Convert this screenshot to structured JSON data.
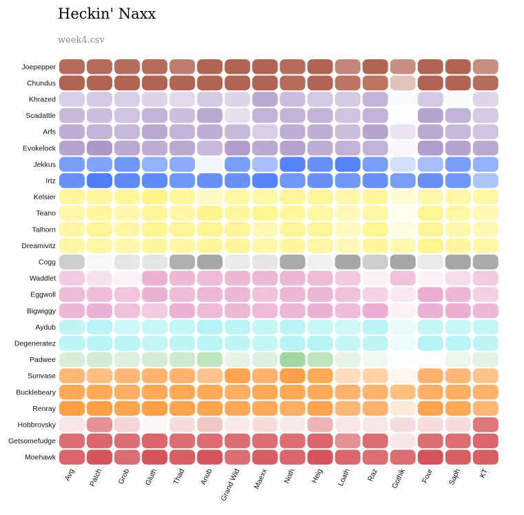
{
  "title": "Heckin' Naxx",
  "subtitle": "week4.csv",
  "chart_data": {
    "type": "heatmap",
    "title": "Heckin' Naxx",
    "subtitle": "week4.csv",
    "columns": [
      "Avg",
      "Patch",
      "Grob",
      "Gluth",
      "Thad",
      "Anub",
      "Grand Wid",
      "Maexx",
      "Noth",
      "Heig",
      "Loath",
      "Raz",
      "Gothik",
      "Four",
      "Saph",
      "KT"
    ],
    "rows": [
      {
        "name": "Joepepper",
        "hue": "#a9533f",
        "levels": [
          0.85,
          0.85,
          0.85,
          0.85,
          0.75,
          0.9,
          0.9,
          0.9,
          0.85,
          0.9,
          0.7,
          0.9,
          0.65,
          0.9,
          0.9,
          0.65
        ]
      },
      {
        "name": "Chundus",
        "hue": "#a9533f",
        "levels": [
          0.9,
          0.9,
          0.9,
          0.9,
          0.9,
          0.9,
          0.9,
          0.9,
          0.85,
          0.9,
          0.8,
          0.8,
          0.35,
          0.9,
          0.9,
          0.85
        ]
      },
      {
        "name": "Khrazed",
        "hue": "#a993c6",
        "levels": [
          0.45,
          0.5,
          0.45,
          0.4,
          0.35,
          0.5,
          0.4,
          0.8,
          0.6,
          0.5,
          0.5,
          0.7,
          0.05,
          0.5,
          0.05,
          0.4
        ]
      },
      {
        "name": "Scadattle",
        "hue": "#a993c6",
        "levels": [
          0.65,
          0.6,
          0.55,
          0.7,
          0.6,
          0.8,
          0.3,
          0.7,
          0.7,
          0.7,
          0.55,
          0.7,
          0.03,
          0.85,
          0.7,
          0.5
        ]
      },
      {
        "name": "Arfs",
        "hue": "#a993c6",
        "levels": [
          0.75,
          0.7,
          0.65,
          0.8,
          0.7,
          0.75,
          0.65,
          0.45,
          0.75,
          0.75,
          0.6,
          0.85,
          0.25,
          0.8,
          0.65,
          0.55
        ]
      },
      {
        "name": "Evokelock",
        "hue": "#a993c6",
        "levels": [
          0.85,
          0.95,
          0.8,
          0.75,
          0.8,
          0.65,
          0.9,
          0.8,
          0.85,
          0.75,
          0.7,
          0.7,
          0.08,
          0.9,
          0.85,
          0.8
        ]
      },
      {
        "name": "Jekkus",
        "hue": "#4c7ef6",
        "levels": [
          0.75,
          0.7,
          0.8,
          0.6,
          0.65,
          0.08,
          0.75,
          0.5,
          0.95,
          0.85,
          0.95,
          0.75,
          0.25,
          0.5,
          0.75,
          0.6
        ]
      },
      {
        "name": "Irtz",
        "hue": "#4c7ef6",
        "levels": [
          0.85,
          1,
          0.9,
          0.9,
          0.8,
          0.85,
          0.85,
          0.95,
          0.8,
          0.85,
          0.8,
          0.85,
          0.75,
          0.85,
          0.8,
          0.45
        ]
      },
      {
        "name": "Kelsier",
        "hue": "#fff37e",
        "levels": [
          0.75,
          0.75,
          0.75,
          0.9,
          0.75,
          0.45,
          0.7,
          0.7,
          0.8,
          0.8,
          0.65,
          0.75,
          0.35,
          0.65,
          0.7,
          0.7
        ]
      },
      {
        "name": "Teano",
        "hue": "#fff37e",
        "levels": [
          0.65,
          0.75,
          0.65,
          0.8,
          0.7,
          0.9,
          0.75,
          0.85,
          0.75,
          0.7,
          0.55,
          0.7,
          0.15,
          0.85,
          0.7,
          0.6
        ]
      },
      {
        "name": "Talhorn",
        "hue": "#fff37e",
        "levels": [
          0.7,
          0.8,
          0.7,
          0.85,
          0.8,
          0.85,
          0.8,
          0.6,
          0.8,
          0.8,
          0.5,
          0.85,
          0.25,
          0.8,
          0.65,
          0.6
        ]
      },
      {
        "name": "Dreamivitz",
        "hue": "#fff37e",
        "levels": [
          0.7,
          0.7,
          0.65,
          0.75,
          0.7,
          0.75,
          0.75,
          0.65,
          0.75,
          0.7,
          0.55,
          0.75,
          0.6,
          0.85,
          0.75,
          0.7
        ]
      },
      {
        "name": "Cogg",
        "hue": "#9c9c9c",
        "levels": [
          0.5,
          0.08,
          0.25,
          0.25,
          0.8,
          0.9,
          0.2,
          0.25,
          0.85,
          0.15,
          0.9,
          0.5,
          0.9,
          0.2,
          0.9,
          0.85
        ]
      },
      {
        "name": "Waddlet",
        "hue": "#e79fc8",
        "levels": [
          0.55,
          0.3,
          0.12,
          0.8,
          0.75,
          0.7,
          0.75,
          0.75,
          0.75,
          0.7,
          0.55,
          0.15,
          0.65,
          0.15,
          0.35,
          0.55
        ]
      },
      {
        "name": "Eggwoll",
        "hue": "#e79fc8",
        "levels": [
          0.7,
          0.7,
          0.6,
          0.8,
          0.7,
          0.75,
          0.75,
          0.65,
          0.75,
          0.75,
          0.65,
          0.45,
          0.25,
          0.85,
          0.75,
          0.5
        ]
      },
      {
        "name": "Bigwiggy",
        "hue": "#e79fc8",
        "levels": [
          0.75,
          0.8,
          0.65,
          0.55,
          0.8,
          0.7,
          0.75,
          0.7,
          0.75,
          0.8,
          0.7,
          0.85,
          0.15,
          0.8,
          0.85,
          0.75
        ]
      },
      {
        "name": "Aydub",
        "hue": "#9df0f0",
        "levels": [
          0.65,
          0.7,
          0.5,
          0.55,
          0.6,
          0.75,
          0.7,
          0.6,
          0.7,
          0.55,
          0.5,
          0.7,
          0.25,
          0.6,
          0.55,
          0.6
        ]
      },
      {
        "name": "Degeneratez",
        "hue": "#9df0f0",
        "levels": [
          0.7,
          0.7,
          0.7,
          0.6,
          0.65,
          0.7,
          0.65,
          0.6,
          0.75,
          0.75,
          0.6,
          0.65,
          0.2,
          0.75,
          0.7,
          0.65
        ]
      },
      {
        "name": "Padwee",
        "hue": "#9dd59d",
        "levels": [
          0.4,
          0.45,
          0.35,
          0.45,
          0.5,
          0.65,
          0.25,
          0.35,
          0.95,
          0.65,
          0.25,
          0.15,
          0.05,
          0.05,
          0.2,
          0.3
        ]
      },
      {
        "name": "Sunvase",
        "hue": "#ff9a3c",
        "levels": [
          0.7,
          0.65,
          0.7,
          0.75,
          0.75,
          0.6,
          0.9,
          0.75,
          0.95,
          0.85,
          0.35,
          0.45,
          0.1,
          0.75,
          0.7,
          0.6
        ]
      },
      {
        "name": "Bucklebeary",
        "hue": "#ff9a3c",
        "levels": [
          0.85,
          0.85,
          0.8,
          0.85,
          0.85,
          0.85,
          0.8,
          0.85,
          0.85,
          0.85,
          0.75,
          0.75,
          0.65,
          0.8,
          0.8,
          0.75
        ]
      },
      {
        "name": "Renray",
        "hue": "#ff9a3c",
        "levels": [
          0.95,
          0.95,
          0.9,
          0.95,
          0.9,
          0.9,
          0.85,
          0.85,
          0.8,
          0.9,
          0.7,
          0.75,
          0.2,
          0.9,
          0.85,
          0.7
        ]
      },
      {
        "name": "Hobbrovsky",
        "hue": "#d6555b",
        "levels": [
          0.15,
          0.65,
          0.25,
          0.05,
          0.2,
          0.35,
          0.12,
          0.2,
          0.12,
          0.45,
          0.15,
          0.15,
          0.2,
          0.2,
          0.2,
          0.8
        ]
      },
      {
        "name": "Getsomefudge",
        "hue": "#d6555b",
        "levels": [
          0.85,
          0.9,
          0.85,
          0.9,
          0.85,
          0.85,
          0.85,
          0.85,
          0.85,
          0.9,
          0.65,
          0.85,
          0.15,
          0.85,
          0.85,
          0.9
        ]
      },
      {
        "name": "Moehawk",
        "hue": "#d6555b",
        "levels": [
          0.9,
          1,
          0.85,
          1,
          0.95,
          1,
          0.85,
          0.95,
          0.9,
          1,
          0.9,
          0.85,
          0.85,
          1,
          0.95,
          0.95
        ]
      }
    ]
  }
}
